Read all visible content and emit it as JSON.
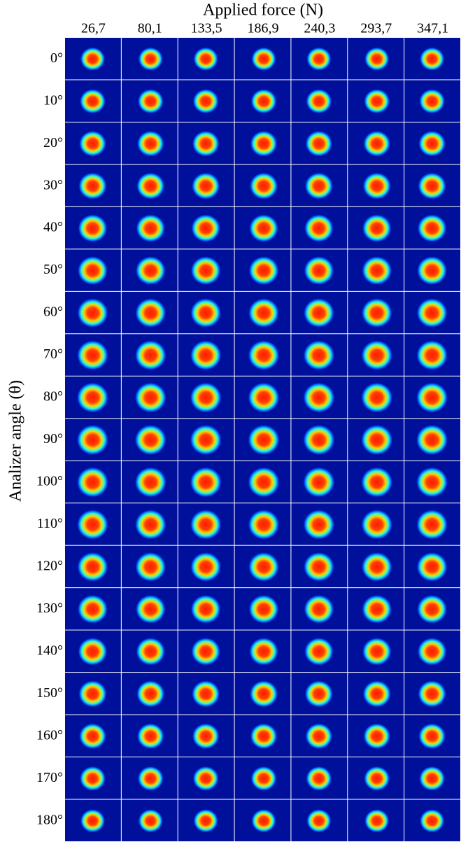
{
  "header": {
    "title": "Applied force (N)"
  },
  "y_label": "Analizer angle (θ)",
  "columns": [
    "26,7",
    "80,1",
    "133,5",
    "186,9",
    "240,3",
    "293,7",
    "347,1"
  ],
  "rows": [
    "0°",
    "10°",
    "20°",
    "30°",
    "40°",
    "50°",
    "60°",
    "70°",
    "80°",
    "90°",
    "100°",
    "110°",
    "120°",
    "130°",
    "140°",
    "150°",
    "160°",
    "170°",
    "180°"
  ]
}
